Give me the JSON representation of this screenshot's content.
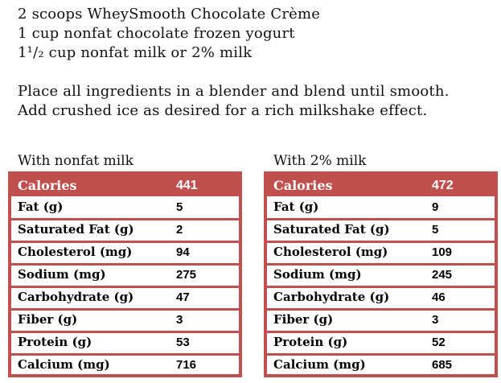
{
  "colors": {
    "accent_red": "#C0504D",
    "header_text": "#FFFFFF",
    "body_text": "#111111"
  },
  "recipe": {
    "ingredients": [
      "2 scoops WheySmooth Chocolate Crème",
      "1 cup nonfat chocolate frozen yogurt",
      "1¹/₂ cup nonfat milk or 2% milk"
    ],
    "instructions": [
      "Place all ingredients in a blender and blend until smooth.",
      "Add crushed ice as desired for a rich milkshake effect."
    ]
  },
  "tables": [
    {
      "title": "With nonfat milk",
      "header": {
        "label": "Calories",
        "value": "441"
      },
      "rows": [
        {
          "label": "Fat (g)",
          "value": "5"
        },
        {
          "label": "Saturated Fat (g)",
          "value": "2"
        },
        {
          "label": "Cholesterol (mg)",
          "value": "94"
        },
        {
          "label": "Sodium (mg)",
          "value": "275"
        },
        {
          "label": "Carbohydrate (g)",
          "value": "47"
        },
        {
          "label": "Fiber (g)",
          "value": "3"
        },
        {
          "label": "Protein (g)",
          "value": "53"
        },
        {
          "label": "Calcium (mg)",
          "value": "716"
        }
      ]
    },
    {
      "title": "With 2% milk",
      "header": {
        "label": "Calories",
        "value": "472"
      },
      "rows": [
        {
          "label": "Fat (g)",
          "value": "9"
        },
        {
          "label": "Saturated Fat (g)",
          "value": "5"
        },
        {
          "label": "Cholesterol (mg)",
          "value": "109"
        },
        {
          "label": "Sodium (mg)",
          "value": "245"
        },
        {
          "label": "Carbohydrate (g)",
          "value": "46"
        },
        {
          "label": "Fiber (g)",
          "value": "3"
        },
        {
          "label": "Protein (g)",
          "value": "52"
        },
        {
          "label": "Calcium (mg)",
          "value": "685"
        }
      ]
    }
  ]
}
